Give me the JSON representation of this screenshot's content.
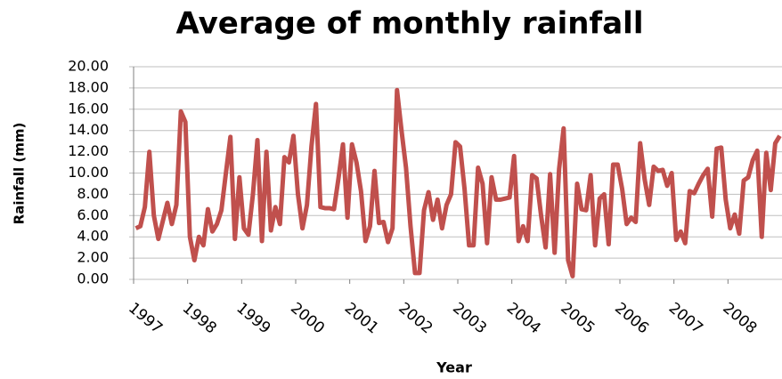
{
  "chart_data": {
    "type": "line",
    "title": "Average of monthly rainfall",
    "x_label": "Year",
    "y_label": "Rainfall (mm)",
    "categories": [
      "1997",
      null,
      null,
      null,
      null,
      null,
      null,
      null,
      null,
      null,
      null,
      null,
      "1998",
      null,
      null,
      null,
      null,
      null,
      null,
      null,
      null,
      null,
      null,
      null,
      "1999",
      null,
      null,
      null,
      null,
      null,
      null,
      null,
      null,
      null,
      null,
      null,
      "2000",
      null,
      null,
      null,
      null,
      null,
      null,
      null,
      null,
      null,
      null,
      null,
      "2001",
      null,
      null,
      null,
      null,
      null,
      null,
      null,
      null,
      null,
      null,
      null,
      "2002",
      null,
      null,
      null,
      null,
      null,
      null,
      null,
      null,
      null,
      null,
      null,
      "2003",
      null,
      null,
      null,
      null,
      null,
      null,
      null,
      null,
      null,
      null,
      null,
      "2004",
      null,
      null,
      null,
      null,
      null,
      null,
      null,
      null,
      null,
      null,
      null,
      "2005",
      null,
      null,
      null,
      null,
      null,
      null,
      null,
      null,
      null,
      null,
      null,
      "2006",
      null,
      null,
      null,
      null,
      null,
      null,
      null,
      null,
      null,
      null,
      null,
      "2007",
      null,
      null,
      null,
      null,
      null,
      null,
      null,
      null,
      null,
      null,
      null,
      "2008",
      null,
      null,
      null,
      null,
      null,
      null,
      null,
      null,
      null,
      null,
      null
    ],
    "values": [
      4.8,
      5,
      6.8,
      12,
      6,
      3.8,
      5.5,
      7.2,
      5.2,
      7,
      15.8,
      14.8,
      4,
      1.8,
      4,
      3.2,
      6.6,
      4.5,
      5.2,
      6.5,
      10,
      13.4,
      3.8,
      9.6,
      4.8,
      4.2,
      8,
      13.1,
      3.6,
      12,
      4.6,
      6.8,
      5.2,
      11.5,
      11,
      13.5,
      8,
      4.8,
      7,
      12.5,
      16.5,
      6.8,
      6.7,
      6.7,
      6.6,
      9.5,
      12.7,
      5.8,
      12.7,
      11,
      8.3,
      3.6,
      5,
      10.2,
      5.3,
      5.4,
      3.5,
      4.8,
      17.8,
      14,
      10.5,
      5,
      0.6,
      0.6,
      6.5,
      8.2,
      5.6,
      7.5,
      4.8,
      7,
      8,
      12.9,
      12.5,
      8.5,
      3.2,
      3.2,
      10.5,
      9,
      3.4,
      9.6,
      7.5,
      7.5,
      7.6,
      7.7,
      11.6,
      3.6,
      5,
      3.6,
      9.8,
      9.5,
      6,
      3,
      9.9,
      2.5,
      10.4,
      14.2,
      1.8,
      0.3,
      9,
      6.6,
      6.5,
      9.8,
      3.2,
      7.6,
      8,
      3.3,
      10.8,
      10.8,
      8.5,
      5.2,
      5.8,
      5.4,
      12.8,
      9.4,
      7,
      10.6,
      10.2,
      10.3,
      8.8,
      10,
      3.7,
      4.5,
      3.4,
      8.3,
      8.1,
      9,
      9.8,
      10.4,
      5.9,
      12.3,
      12.4,
      7.5,
      4.8,
      6.1,
      4.3,
      9.3,
      9.6,
      11.2,
      12.1,
      4,
      11.9,
      8.4,
      12.8,
      13.5
    ],
    "color": "#c0504d",
    "ylim": [
      0,
      20
    ],
    "yticks": [
      {
        "value": 0,
        "label": "0.00"
      },
      {
        "value": 2,
        "label": "2.00"
      },
      {
        "value": 4,
        "label": "4.00"
      },
      {
        "value": 6,
        "label": "6.00"
      },
      {
        "value": 8,
        "label": "8.00"
      },
      {
        "value": 10,
        "label": "10.00"
      },
      {
        "value": 12,
        "label": "12.00"
      },
      {
        "value": 14,
        "label": "14.00"
      },
      {
        "value": 16,
        "label": "16.00"
      },
      {
        "value": 18,
        "label": "18.00"
      },
      {
        "value": 20,
        "label": "20.00"
      }
    ],
    "grid": true
  }
}
